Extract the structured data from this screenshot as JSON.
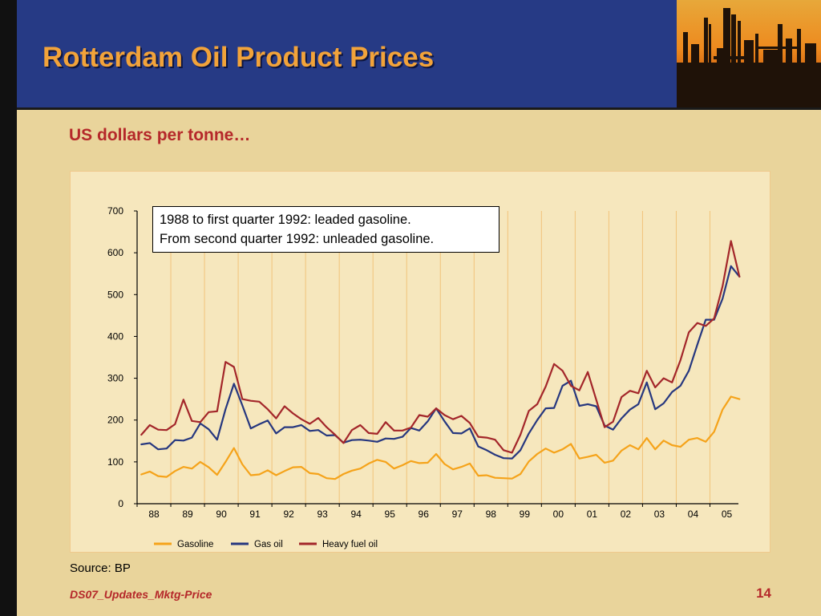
{
  "header": {
    "title": "Rotterdam Oil Product Prices"
  },
  "subtitle": "US dollars per tonne…",
  "annotation": {
    "line1": "1988 to first quarter 1992: leaded gasoline.",
    "line2": "From second quarter 1992: unleaded gasoline."
  },
  "source": "Source: BP",
  "footer": {
    "doc_id": "DS07_Updates_Mktg-Price",
    "page": "14"
  },
  "colors": {
    "header_bg": "#263a85",
    "title": "#f2a33a",
    "accent_red": "#b5282a",
    "gasoline": "#f5a31a",
    "gas_oil": "#26377f",
    "heavy_fuel_oil": "#a3262a"
  },
  "chart_data": {
    "type": "line",
    "title": "",
    "xlabel": "",
    "ylabel": "",
    "ylim": [
      0,
      700
    ],
    "yticks": [
      0,
      100,
      200,
      300,
      400,
      500,
      600,
      700
    ],
    "x_tick_labels": [
      "88",
      "89",
      "90",
      "91",
      "92",
      "93",
      "94",
      "95",
      "96",
      "97",
      "98",
      "99",
      "00",
      "01",
      "02",
      "03",
      "04",
      "05"
    ],
    "x_start_year": 1988,
    "x_end_year": 2005.75,
    "grid": "vertical",
    "legend_position": "bottom",
    "series": [
      {
        "name": "Gasoline",
        "color": "#f5a31a",
        "values": [
          70,
          77,
          66,
          64,
          78,
          88,
          84,
          100,
          87,
          69,
          100,
          133,
          94,
          68,
          70,
          80,
          68,
          78,
          87,
          88,
          73,
          71,
          61,
          59,
          71,
          79,
          84,
          96,
          105,
          100,
          84,
          92,
          102,
          97,
          98,
          119,
          95,
          82,
          88,
          96,
          67,
          68,
          62,
          61,
          60,
          71,
          101,
          119,
          132,
          122,
          130,
          143,
          108,
          112,
          117,
          98,
          103,
          127,
          140,
          130,
          157,
          130,
          151,
          140,
          136,
          153,
          157,
          148,
          172,
          225,
          256,
          250
        ]
      },
      {
        "name": "Gas oil",
        "color": "#26377f",
        "values": [
          142,
          145,
          130,
          132,
          152,
          151,
          158,
          192,
          178,
          153,
          226,
          287,
          235,
          180,
          190,
          199,
          168,
          183,
          183,
          188,
          174,
          176,
          163,
          164,
          146,
          152,
          153,
          151,
          148,
          156,
          155,
          160,
          181,
          175,
          197,
          228,
          197,
          169,
          168,
          180,
          137,
          128,
          117,
          109,
          108,
          128,
          168,
          200,
          228,
          229,
          282,
          294,
          234,
          238,
          233,
          187,
          177,
          204,
          225,
          238,
          290,
          226,
          240,
          267,
          282,
          318,
          380,
          440,
          440,
          490,
          568,
          543
        ]
      },
      {
        "name": "Heavy fuel oil",
        "color": "#a3262a",
        "values": [
          165,
          188,
          177,
          176,
          190,
          249,
          198,
          195,
          219,
          221,
          339,
          327,
          250,
          246,
          244,
          226,
          204,
          233,
          216,
          202,
          191,
          205,
          183,
          165,
          145,
          176,
          188,
          169,
          167,
          195,
          175,
          175,
          182,
          212,
          208,
          228,
          212,
          202,
          210,
          193,
          160,
          158,
          153,
          128,
          122,
          165,
          222,
          238,
          280,
          334,
          318,
          282,
          271,
          315,
          249,
          183,
          196,
          255,
          270,
          264,
          318,
          278,
          300,
          290,
          343,
          410,
          432,
          425,
          443,
          520,
          628,
          543
        ]
      }
    ]
  }
}
